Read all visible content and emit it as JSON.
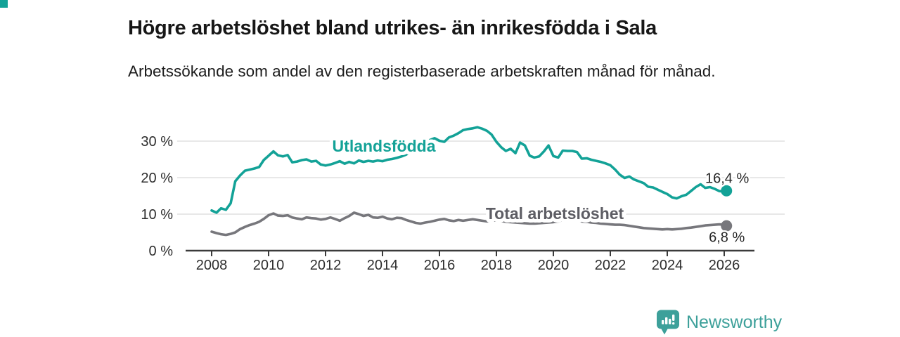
{
  "page": {
    "title": "Högre arbetslöshet bland utrikes- än inrikesfödda i Sala",
    "subtitle": "Arbetssökande som andel av den registerbaserade arbetskraften månad för månad.",
    "brand": {
      "name": "Newsworthy",
      "icon": "bar-chart-speech-bubble-icon",
      "color": "#3da09a"
    }
  },
  "chart_data": {
    "type": "line",
    "title": "Högre arbetslöshet bland utrikes- än inrikesfödda i Sala",
    "subtitle": "Arbetssökande som andel av den registerbaserade arbetskraften månad för månad.",
    "x_unit": "year (monthly data)",
    "y_unit": "percent",
    "xlim": [
      2007.1,
      2027.1
    ],
    "ylim": [
      0,
      36
    ],
    "grid": "horizontal",
    "x_ticks": [
      2008,
      2010,
      2012,
      2014,
      2016,
      2018,
      2020,
      2022,
      2024,
      2026
    ],
    "y_ticks": [
      {
        "value": 0,
        "label": "0 %"
      },
      {
        "value": 10,
        "label": "10 %"
      },
      {
        "value": 20,
        "label": "20 %"
      },
      {
        "value": 30,
        "label": "30 %"
      }
    ],
    "legend_position": "inline-labels",
    "series": [
      {
        "name": "Utlandsfödda",
        "color": "#13a297",
        "label_at": [
          2014.05,
          27.1
        ],
        "end_label": "16,4 %",
        "end_value": 16.4,
        "end_label_side": "above",
        "points": [
          [
            2008,
            11
          ],
          [
            2008.17,
            10.4
          ],
          [
            2008.33,
            11.6
          ],
          [
            2008.5,
            11.2
          ],
          [
            2008.67,
            13
          ],
          [
            2008.83,
            19
          ],
          [
            2009,
            20.6
          ],
          [
            2009.17,
            21.9
          ],
          [
            2009.33,
            22.2
          ],
          [
            2009.5,
            22.5
          ],
          [
            2009.67,
            22.9
          ],
          [
            2009.83,
            24.8
          ],
          [
            2010,
            26
          ],
          [
            2010.17,
            27.2
          ],
          [
            2010.33,
            26.1
          ],
          [
            2010.5,
            25.8
          ],
          [
            2010.67,
            26.2
          ],
          [
            2010.83,
            24.2
          ],
          [
            2011,
            24.4
          ],
          [
            2011.17,
            24.8
          ],
          [
            2011.33,
            25
          ],
          [
            2011.5,
            24.4
          ],
          [
            2011.67,
            24.6
          ],
          [
            2011.83,
            23.6
          ],
          [
            2012,
            23.3
          ],
          [
            2012.17,
            23.6
          ],
          [
            2012.33,
            24
          ],
          [
            2012.5,
            24.5
          ],
          [
            2012.67,
            23.8
          ],
          [
            2012.83,
            24.3
          ],
          [
            2013,
            23.9
          ],
          [
            2013.17,
            24.7
          ],
          [
            2013.33,
            24.3
          ],
          [
            2013.5,
            24.6
          ],
          [
            2013.67,
            24.4
          ],
          [
            2013.83,
            24.7
          ],
          [
            2014,
            24.5
          ],
          [
            2014.17,
            24.9
          ],
          [
            2014.33,
            25.1
          ],
          [
            2014.5,
            25.4
          ],
          [
            2014.67,
            25.8
          ],
          [
            2014.83,
            26.3
          ],
          [
            2015,
            27
          ],
          [
            2015.17,
            27.8
          ],
          [
            2015.33,
            28.6
          ],
          [
            2015.5,
            29.7
          ],
          [
            2015.67,
            30.3
          ],
          [
            2015.83,
            30.8
          ],
          [
            2016,
            30.1
          ],
          [
            2016.17,
            29.8
          ],
          [
            2016.33,
            31
          ],
          [
            2016.5,
            31.5
          ],
          [
            2016.67,
            32.2
          ],
          [
            2016.83,
            33
          ],
          [
            2017,
            33.3
          ],
          [
            2017.17,
            33.5
          ],
          [
            2017.33,
            33.8
          ],
          [
            2017.5,
            33.4
          ],
          [
            2017.67,
            32.8
          ],
          [
            2017.83,
            31.8
          ],
          [
            2018,
            29.8
          ],
          [
            2018.17,
            28.3
          ],
          [
            2018.33,
            27.3
          ],
          [
            2018.5,
            27.9
          ],
          [
            2018.67,
            26.7
          ],
          [
            2018.83,
            29.6
          ],
          [
            2019,
            28.8
          ],
          [
            2019.17,
            26
          ],
          [
            2019.33,
            25.5
          ],
          [
            2019.5,
            25.8
          ],
          [
            2019.67,
            27.2
          ],
          [
            2019.83,
            28.8
          ],
          [
            2020,
            25.9
          ],
          [
            2020.17,
            25.5
          ],
          [
            2020.33,
            27.4
          ],
          [
            2020.5,
            27.3
          ],
          [
            2020.67,
            27.3
          ],
          [
            2020.83,
            27
          ],
          [
            2021,
            25.2
          ],
          [
            2021.17,
            25.3
          ],
          [
            2021.33,
            24.9
          ],
          [
            2021.5,
            24.6
          ],
          [
            2021.67,
            24.3
          ],
          [
            2021.83,
            23.9
          ],
          [
            2022,
            23.4
          ],
          [
            2022.17,
            22.2
          ],
          [
            2022.33,
            20.8
          ],
          [
            2022.5,
            19.9
          ],
          [
            2022.67,
            20.3
          ],
          [
            2022.83,
            19.5
          ],
          [
            2023,
            19
          ],
          [
            2023.17,
            18.5
          ],
          [
            2023.33,
            17.5
          ],
          [
            2023.5,
            17.3
          ],
          [
            2023.67,
            16.7
          ],
          [
            2023.83,
            16.1
          ],
          [
            2024,
            15.5
          ],
          [
            2024.17,
            14.6
          ],
          [
            2024.33,
            14.3
          ],
          [
            2024.5,
            14.9
          ],
          [
            2024.67,
            15.3
          ],
          [
            2024.83,
            16.3
          ],
          [
            2025,
            17.4
          ],
          [
            2025.17,
            18.2
          ],
          [
            2025.33,
            17.2
          ],
          [
            2025.5,
            17.4
          ],
          [
            2025.67,
            16.9
          ],
          [
            2025.83,
            16.3
          ],
          [
            2026,
            16.2
          ],
          [
            2026.08,
            16.4
          ]
        ]
      },
      {
        "name": "Total arbetslöshet",
        "color": "#77777c",
        "label_color": "#5d5d64",
        "label_at": [
          2020.05,
          8.65
        ],
        "end_label": "6,8 %",
        "end_value": 6.8,
        "end_label_side": "below",
        "points": [
          [
            2008,
            5.2
          ],
          [
            2008.17,
            4.8
          ],
          [
            2008.33,
            4.5
          ],
          [
            2008.5,
            4.3
          ],
          [
            2008.67,
            4.6
          ],
          [
            2008.83,
            5
          ],
          [
            2009,
            5.9
          ],
          [
            2009.17,
            6.5
          ],
          [
            2009.33,
            7
          ],
          [
            2009.5,
            7.4
          ],
          [
            2009.67,
            7.9
          ],
          [
            2009.83,
            8.7
          ],
          [
            2010,
            9.7
          ],
          [
            2010.17,
            10.2
          ],
          [
            2010.33,
            9.6
          ],
          [
            2010.5,
            9.5
          ],
          [
            2010.67,
            9.7
          ],
          [
            2010.83,
            9.1
          ],
          [
            2011,
            8.8
          ],
          [
            2011.17,
            8.6
          ],
          [
            2011.33,
            9.1
          ],
          [
            2011.5,
            8.9
          ],
          [
            2011.67,
            8.8
          ],
          [
            2011.83,
            8.5
          ],
          [
            2012,
            8.7
          ],
          [
            2012.17,
            9.1
          ],
          [
            2012.33,
            8.7
          ],
          [
            2012.5,
            8.2
          ],
          [
            2012.67,
            8.9
          ],
          [
            2012.83,
            9.5
          ],
          [
            2013,
            10.4
          ],
          [
            2013.17,
            10
          ],
          [
            2013.33,
            9.5
          ],
          [
            2013.5,
            9.8
          ],
          [
            2013.67,
            9.1
          ],
          [
            2013.83,
            9
          ],
          [
            2014,
            9.3
          ],
          [
            2014.17,
            8.8
          ],
          [
            2014.33,
            8.6
          ],
          [
            2014.5,
            9
          ],
          [
            2014.67,
            8.9
          ],
          [
            2014.83,
            8.4
          ],
          [
            2015,
            8
          ],
          [
            2015.17,
            7.6
          ],
          [
            2015.33,
            7.4
          ],
          [
            2015.5,
            7.7
          ],
          [
            2015.67,
            7.9
          ],
          [
            2015.83,
            8.2
          ],
          [
            2016,
            8.5
          ],
          [
            2016.17,
            8.7
          ],
          [
            2016.33,
            8.3
          ],
          [
            2016.5,
            8.1
          ],
          [
            2016.67,
            8.4
          ],
          [
            2016.83,
            8.2
          ],
          [
            2017,
            8.4
          ],
          [
            2017.17,
            8.6
          ],
          [
            2017.33,
            8.4
          ],
          [
            2017.5,
            8.2
          ],
          [
            2017.67,
            8
          ],
          [
            2017.83,
            8.2
          ],
          [
            2018,
            8.3
          ],
          [
            2018.17,
            8.1
          ],
          [
            2018.33,
            7.9
          ],
          [
            2018.5,
            7.8
          ],
          [
            2018.67,
            7.7
          ],
          [
            2018.83,
            7.6
          ],
          [
            2019,
            7.5
          ],
          [
            2019.17,
            7.4
          ],
          [
            2019.33,
            7.4
          ],
          [
            2019.5,
            7.5
          ],
          [
            2019.67,
            7.6
          ],
          [
            2019.83,
            7.7
          ],
          [
            2020,
            7.8
          ],
          [
            2020.17,
            8
          ],
          [
            2020.33,
            8.4
          ],
          [
            2020.5,
            8.5
          ],
          [
            2020.67,
            8.4
          ],
          [
            2020.83,
            8.2
          ],
          [
            2021,
            8
          ],
          [
            2021.17,
            7.9
          ],
          [
            2021.33,
            7.7
          ],
          [
            2021.5,
            7.6
          ],
          [
            2021.67,
            7.4
          ],
          [
            2021.83,
            7.3
          ],
          [
            2022,
            7.2
          ],
          [
            2022.17,
            7.1
          ],
          [
            2022.33,
            7.1
          ],
          [
            2022.5,
            7
          ],
          [
            2022.67,
            6.8
          ],
          [
            2022.83,
            6.6
          ],
          [
            2023,
            6.4
          ],
          [
            2023.17,
            6.2
          ],
          [
            2023.33,
            6.1
          ],
          [
            2023.5,
            6
          ],
          [
            2023.67,
            5.9
          ],
          [
            2023.83,
            5.8
          ],
          [
            2024,
            5.9
          ],
          [
            2024.17,
            5.8
          ],
          [
            2024.33,
            5.9
          ],
          [
            2024.5,
            6
          ],
          [
            2024.67,
            6.2
          ],
          [
            2024.83,
            6.3
          ],
          [
            2025,
            6.5
          ],
          [
            2025.17,
            6.7
          ],
          [
            2025.33,
            6.9
          ],
          [
            2025.5,
            7
          ],
          [
            2025.67,
            7.1
          ],
          [
            2025.83,
            7.2
          ],
          [
            2026,
            7.1
          ],
          [
            2026.08,
            6.8
          ]
        ]
      }
    ]
  }
}
